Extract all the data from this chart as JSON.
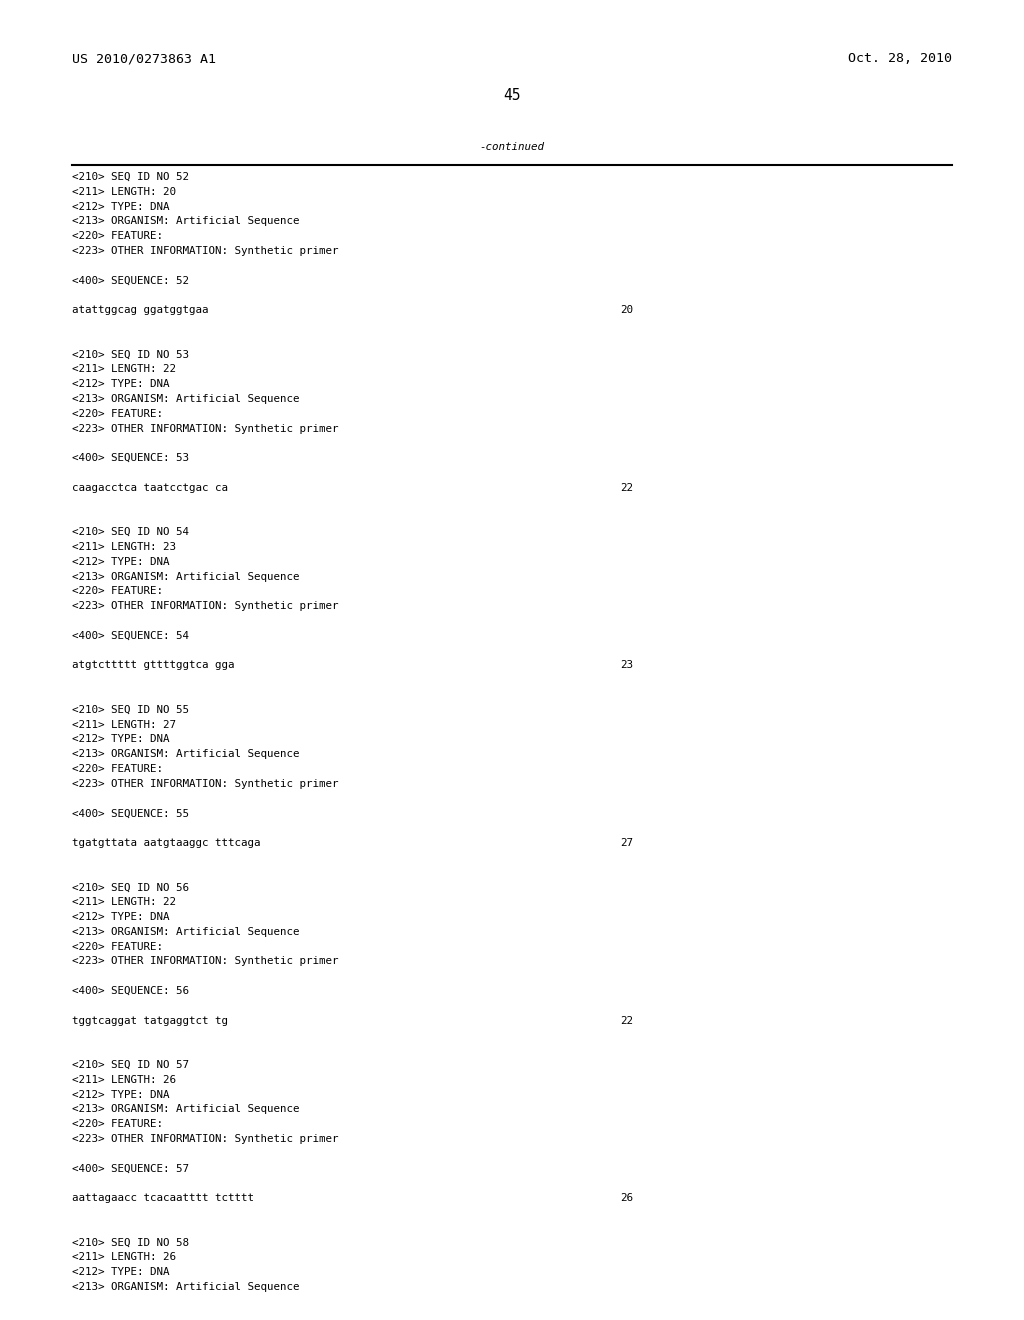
{
  "header_left": "US 2010/0273863 A1",
  "header_right": "Oct. 28, 2010",
  "page_number": "45",
  "continued_text": "-continued",
  "background_color": "#ffffff",
  "text_color": "#000000",
  "entries": [
    {
      "seq_id": "52",
      "length": "20",
      "type": "DNA",
      "organism": "Artificial Sequence",
      "feature": true,
      "other_info": "Synthetic primer",
      "sequence": "atattggcag ggatggtgaa",
      "seq_length_num": "20",
      "partial": false
    },
    {
      "seq_id": "53",
      "length": "22",
      "type": "DNA",
      "organism": "Artificial Sequence",
      "feature": true,
      "other_info": "Synthetic primer",
      "sequence": "caagacctca taatcctgac ca",
      "seq_length_num": "22",
      "partial": false
    },
    {
      "seq_id": "54",
      "length": "23",
      "type": "DNA",
      "organism": "Artificial Sequence",
      "feature": true,
      "other_info": "Synthetic primer",
      "sequence": "atgtcttttt gttttggtca gga",
      "seq_length_num": "23",
      "partial": false
    },
    {
      "seq_id": "55",
      "length": "27",
      "type": "DNA",
      "organism": "Artificial Sequence",
      "feature": true,
      "other_info": "Synthetic primer",
      "sequence": "tgatgttata aatgtaaggc tttcaga",
      "seq_length_num": "27",
      "partial": false
    },
    {
      "seq_id": "56",
      "length": "22",
      "type": "DNA",
      "organism": "Artificial Sequence",
      "feature": true,
      "other_info": "Synthetic primer",
      "sequence": "tggtcaggat tatgaggtct tg",
      "seq_length_num": "22",
      "partial": false
    },
    {
      "seq_id": "57",
      "length": "26",
      "type": "DNA",
      "organism": "Artificial Sequence",
      "feature": true,
      "other_info": "Synthetic primer",
      "sequence": "aattagaacc tcacaatttt tctttt",
      "seq_length_num": "26",
      "partial": false
    },
    {
      "seq_id": "58",
      "length": "26",
      "type": "DNA",
      "organism": "Artificial Sequence",
      "feature": false,
      "other_info": "",
      "sequence": "",
      "seq_length_num": "",
      "partial": true
    }
  ]
}
